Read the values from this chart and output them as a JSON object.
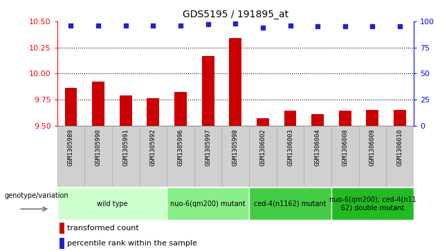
{
  "title": "GDS5195 / 191895_at",
  "samples": [
    "GSM1305989",
    "GSM1305990",
    "GSM1305991",
    "GSM1305992",
    "GSM1305996",
    "GSM1305997",
    "GSM1305998",
    "GSM1306002",
    "GSM1306003",
    "GSM1306004",
    "GSM1306008",
    "GSM1306009",
    "GSM1306010"
  ],
  "bar_values": [
    9.86,
    9.92,
    9.79,
    9.76,
    9.82,
    10.17,
    10.34,
    9.57,
    9.64,
    9.61,
    9.64,
    9.65,
    9.65
  ],
  "dot_values": [
    96,
    96,
    96,
    96,
    96,
    97,
    98,
    94,
    96,
    95,
    95,
    95,
    95
  ],
  "bar_bottom": 9.5,
  "ylim_left": [
    9.5,
    10.5
  ],
  "ylim_right": [
    0,
    100
  ],
  "yticks_left": [
    9.5,
    9.75,
    10.0,
    10.25,
    10.5
  ],
  "yticks_right": [
    0,
    25,
    50,
    75,
    100
  ],
  "bar_color": "#cc0000",
  "dot_color": "#2222cc",
  "groups": [
    {
      "label": "wild type",
      "indices": [
        0,
        1,
        2,
        3
      ],
      "color": "#ccffcc"
    },
    {
      "label": "nuo-6(qm200) mutant",
      "indices": [
        4,
        5,
        6
      ],
      "color": "#88ee88"
    },
    {
      "label": "ced-4(n1162) mutant",
      "indices": [
        7,
        8,
        9
      ],
      "color": "#44cc44"
    },
    {
      "label": "nuo-6(qm200); ced-4(n11\n62) double mutant",
      "indices": [
        10,
        11,
        12
      ],
      "color": "#22bb22"
    }
  ],
  "legend_bar_label": "transformed count",
  "legend_dot_label": "percentile rank within the sample",
  "genotype_label": "genotype/variation",
  "sample_bg_color": "#d0d0d0",
  "plot_bg": "#ffffff"
}
